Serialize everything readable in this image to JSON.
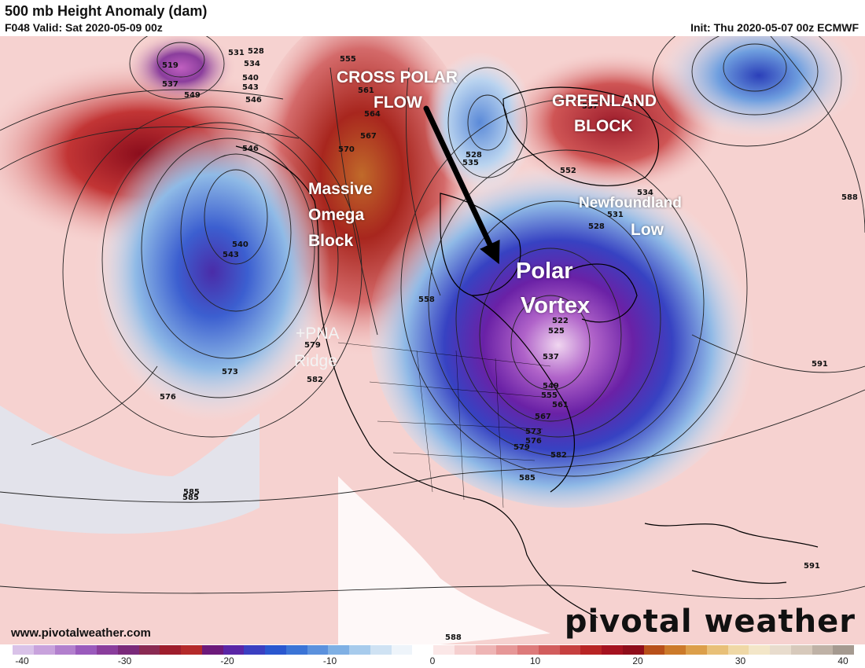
{
  "header": {
    "title": "500 mb Height Anomaly (dam)",
    "valid": "F048 Valid: Sat 2020-05-09 00z",
    "init": "Init: Thu 2020-05-07 00z ECMWF"
  },
  "annotations": {
    "cross_polar": "CROSS POLAR",
    "flow": "FLOW",
    "greenland": "GREENLAND",
    "block": "BLOCK",
    "massive": "Massive",
    "omega": "Omega",
    "omega_block": "Block",
    "newfoundland": "Newfoundland",
    "low": "Low",
    "polar": "Polar",
    "vortex": "Vortex",
    "pna": "+PNA",
    "ridge": "Ridge"
  },
  "contour_labels": [
    "519",
    "531",
    "528",
    "534",
    "537",
    "540",
    "543",
    "546",
    "549",
    "555",
    "561",
    "564",
    "567",
    "570",
    "573",
    "576",
    "579",
    "582",
    "585",
    "588",
    "591",
    "558",
    "552",
    "535",
    "528",
    "522",
    "525",
    "537",
    "549",
    "555",
    "561",
    "567",
    "573",
    "576",
    "579",
    "582",
    "585",
    "534",
    "531",
    "528",
    "537",
    "546",
    "585",
    "588",
    "591",
    "540",
    "543"
  ],
  "footer": {
    "url": "www.pivotalweather.com",
    "brand": "pivotal weather"
  },
  "colorbar": {
    "ticks": [
      "-40",
      "-30",
      "-20",
      "-10",
      "0",
      "10",
      "20",
      "30",
      "40"
    ],
    "colors": [
      "#d9c2e8",
      "#c8a2dc",
      "#b27fcd",
      "#9a5abc",
      "#8a3d9c",
      "#7a2a7a",
      "#8a2a52",
      "#9e1d2c",
      "#b42a2a",
      "#6d1a7a",
      "#5a26a6",
      "#3b3fc1",
      "#2a57cf",
      "#3b74d6",
      "#5b91dd",
      "#7fb0e4",
      "#a7cbec",
      "#cfe2f3",
      "#eef4fa",
      "#ffffff",
      "#fbe7e7",
      "#f5cfcf",
      "#eeb4b4",
      "#e69797",
      "#dd7a7a",
      "#d25d5d",
      "#c63f3f",
      "#b82424",
      "#a5121f",
      "#8f0d1a",
      "#b8501a",
      "#cc7a2a",
      "#dc9f4a",
      "#e8c078",
      "#efd8a6",
      "#f3e6c8",
      "#e8dccd",
      "#d7c9bb",
      "#bfb2a6",
      "#a59a90"
    ]
  }
}
